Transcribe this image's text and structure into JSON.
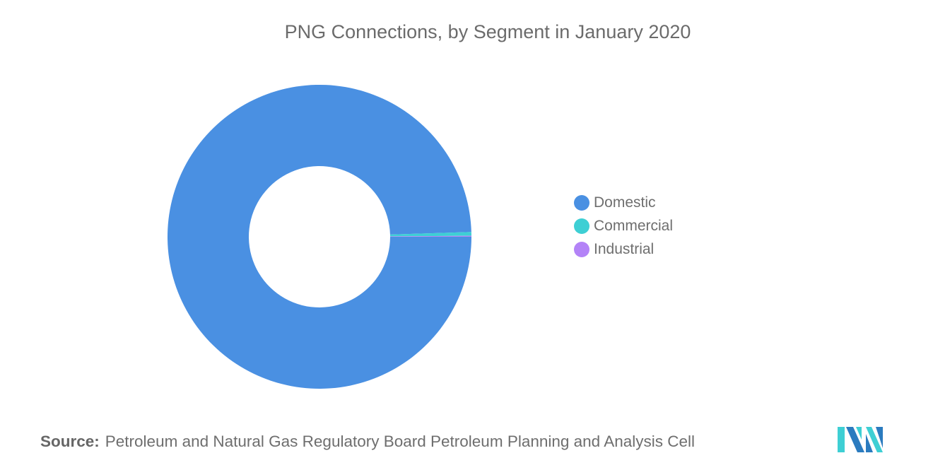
{
  "chart_data": {
    "type": "pie",
    "variant": "donut",
    "title": "PNG Connections, by Segment in January 2020",
    "categories": [
      "Domestic",
      "Commercial",
      "Industrial"
    ],
    "values": [
      99.5,
      0.4,
      0.1
    ],
    "unit": "% share (estimated from slice angles)",
    "colors": [
      "#4a90e2",
      "#3ecfd4",
      "#b383f7"
    ],
    "legend_position": "right",
    "start_angle": "3 o'clock, clockwise"
  },
  "title": "PNG Connections, by Segment in January 2020",
  "legend": [
    {
      "label": "Domestic",
      "color": "#4a90e2"
    },
    {
      "label": "Commercial",
      "color": "#3ecfd4"
    },
    {
      "label": "Industrial",
      "color": "#b383f7"
    }
  ],
  "source": {
    "label": "Source:",
    "text": "Petroleum and Natural Gas Regulatory Board Petroleum Planning and Analysis Cell"
  },
  "logo": {
    "name": "mordor-intelligence-logo",
    "colors": [
      "#2b7bbf",
      "#3ecfd4"
    ]
  }
}
